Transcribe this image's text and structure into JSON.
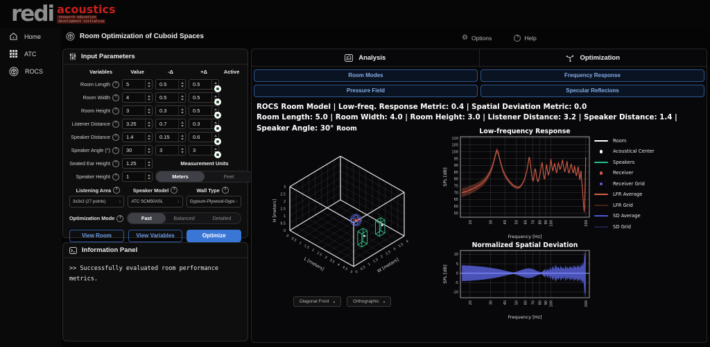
{
  "header": {
    "logo_main": "redi",
    "logo_accent": "acoustics",
    "logo_sub1": "research education",
    "logo_sub2": "development initiative"
  },
  "icons": {
    "help_q": "?",
    "options_gear": "⚙",
    "updown": "↕",
    "dropdown_up": "▴"
  },
  "sidebar": {
    "items": [
      {
        "label": "Home",
        "icon": "home-icon"
      },
      {
        "label": "ATC",
        "icon": "grid-icon"
      },
      {
        "label": "ROCS",
        "icon": "cube-icon"
      }
    ]
  },
  "topbar": {
    "title": "Room Optimization of Cuboid Spaces",
    "options_label": "Options",
    "help_label": "Help"
  },
  "input_panel": {
    "title": "Input Parameters",
    "columns": [
      "Variables",
      "Value",
      "-Δ",
      "+Δ",
      "Active"
    ],
    "rows": [
      {
        "label": "Room Length",
        "value": "5",
        "minus": "0.5",
        "plus": "0.5",
        "active": true
      },
      {
        "label": "Room Width",
        "value": "4",
        "minus": "0.5",
        "plus": "0.5",
        "active": true
      },
      {
        "label": "Room Height",
        "value": "3",
        "minus": "0.3",
        "plus": "0.5",
        "active": true
      },
      {
        "label": "Listener Distance",
        "value": "3.25",
        "minus": "0.7",
        "plus": "0.3",
        "active": true
      },
      {
        "label": "Speaker Distance",
        "value": "1.4",
        "minus": "0.15",
        "plus": "0.6",
        "active": true
      },
      {
        "label": "Speaker Angle (°)",
        "value": "30",
        "minus": "3",
        "plus": "3",
        "active": true
      }
    ],
    "extra_rows": [
      {
        "label": "Seated Ear Height",
        "value": "1.25"
      },
      {
        "label": "Speaker Height",
        "value": "1"
      }
    ],
    "measurement_units": {
      "label": "Measurement Units",
      "options": [
        "Meters",
        "Feet"
      ],
      "selected": "Meters"
    },
    "selects": [
      {
        "label": "Listening Area",
        "value": "3x3x3 (27 points)"
      },
      {
        "label": "Speaker Model",
        "value": "ATC SCM50ASL"
      },
      {
        "label": "Wall Type",
        "value": "Gypsum-Plywood-Gyps"
      }
    ],
    "optimization_mode": {
      "label": "Optimization Mode",
      "options": [
        "Fast",
        "Balanced",
        "Detailed"
      ],
      "selected": "Fast"
    },
    "buttons": [
      {
        "label": "View Room",
        "primary": false
      },
      {
        "label": "View Variables",
        "primary": false
      },
      {
        "label": "Optimize",
        "primary": true
      }
    ]
  },
  "info_panel": {
    "title": "Information Panel",
    "text": ">> Successfully evaluated room performance metrics."
  },
  "right_panel": {
    "tabs": [
      {
        "label": "Analysis"
      },
      {
        "label": "Optimization"
      }
    ],
    "action_buttons": [
      "Room Modes",
      "Frequency Response",
      "Pressure Field",
      "Specular Reflecions"
    ],
    "metrics_bold": "ROCS Room Model",
    "metrics_line1": " | Low-freq. Response Metric: 0.4 | Spatial Deviation Metric: 0.0",
    "metrics_line2": "Room Length: 5.0 | Room Width: 4.0 | Room Height: 3.0 | Listener Distance: 3.2 | Speaker Distance: 1.4 | Speaker Angle: 30°",
    "view_selects": [
      "Diagonal Front",
      "Orthographic"
    ],
    "legend": [
      {
        "label": "Room",
        "marker": "line",
        "color": "#ffffff"
      },
      {
        "label": "Acoustical Center",
        "marker": "dot",
        "color": "#ffffff"
      },
      {
        "label": "Speakers",
        "marker": "line",
        "color": "#27c28b"
      },
      {
        "label": "Receiver",
        "marker": "dot",
        "color": "#d9534f"
      },
      {
        "label": "Receiver Grid",
        "marker": "dot",
        "color": "#5a64d8"
      },
      {
        "label": "LFR Average",
        "marker": "line",
        "color": "#d95f49"
      },
      {
        "label": "LFR Grid",
        "marker": "line",
        "color": "rgba(217,95,73,0.3)"
      },
      {
        "label": "SD Average",
        "marker": "line",
        "color": "#4b57d8"
      },
      {
        "label": "SD Grid",
        "marker": "line",
        "color": "rgba(75,87,216,0.3)"
      }
    ]
  },
  "chart_data": [
    {
      "type": "line",
      "id": "lfr",
      "title": "Low-frequency Response",
      "xlabel": "Frequency [Hz]",
      "ylabel": "SPL [dB]",
      "xlim": [
        16.5,
        215
      ],
      "ylim": [
        52,
        111
      ],
      "xscale": "log",
      "xticks": [
        20,
        30,
        40,
        50,
        60,
        70,
        80,
        90,
        100,
        200
      ],
      "yticks": [
        55,
        60,
        65,
        70,
        75,
        80,
        85,
        90,
        95,
        100,
        105,
        110
      ],
      "line_color": "#d95f49",
      "band_color": "rgba(217,95,73,0.35)",
      "series_name": "LFR Average",
      "band_name": "LFR Grid",
      "avg": [
        [
          17,
          70
        ],
        [
          18,
          70.6
        ],
        [
          19,
          71.2
        ],
        [
          20,
          72
        ],
        [
          21,
          72.8
        ],
        [
          22,
          73.6
        ],
        [
          23,
          74.5
        ],
        [
          24,
          75.5
        ],
        [
          25,
          76.6
        ],
        [
          26,
          77.8
        ],
        [
          27,
          79.2
        ],
        [
          28,
          81
        ],
        [
          29,
          83
        ],
        [
          30,
          85.5
        ],
        [
          31,
          88.5
        ],
        [
          32,
          92.5
        ],
        [
          33,
          97
        ],
        [
          34,
          101
        ],
        [
          35,
          99.5
        ],
        [
          36,
          95
        ],
        [
          37,
          91
        ],
        [
          38,
          87.5
        ],
        [
          39,
          85
        ],
        [
          40,
          83
        ],
        [
          42,
          80
        ],
        [
          44,
          77.8
        ],
        [
          46,
          76
        ],
        [
          48,
          74.8
        ],
        [
          50,
          74
        ],
        [
          52,
          73.6
        ],
        [
          54,
          74.2
        ],
        [
          56,
          75.8
        ],
        [
          58,
          78.2
        ],
        [
          60,
          81.5
        ],
        [
          62,
          86
        ],
        [
          63,
          89.5
        ],
        [
          64,
          93
        ],
        [
          65,
          96
        ],
        [
          66,
          93.5
        ],
        [
          67,
          88.5
        ],
        [
          68,
          84
        ],
        [
          69,
          80.5
        ],
        [
          70,
          78.5
        ],
        [
          71,
          80
        ],
        [
          72,
          84.5
        ],
        [
          73,
          87.5
        ],
        [
          74,
          86
        ],
        [
          75,
          82
        ],
        [
          76,
          79.5
        ],
        [
          77,
          78.2
        ],
        [
          78,
          78.8
        ],
        [
          80,
          82.5
        ],
        [
          82,
          87.5
        ],
        [
          83,
          90.5
        ],
        [
          84,
          92
        ],
        [
          85,
          89
        ],
        [
          86,
          84.5
        ],
        [
          87,
          81.5
        ],
        [
          88,
          80
        ],
        [
          89,
          82
        ],
        [
          90,
          85.5
        ],
        [
          91,
          88.5
        ],
        [
          92,
          90.5
        ],
        [
          93,
          87
        ],
        [
          94,
          84.5
        ],
        [
          95,
          83
        ],
        [
          96,
          84
        ],
        [
          97,
          86
        ],
        [
          98,
          88.5
        ],
        [
          100,
          94.5
        ],
        [
          101,
          92
        ],
        [
          102,
          89.5
        ],
        [
          103,
          87
        ],
        [
          104,
          86
        ],
        [
          106,
          89
        ],
        [
          108,
          91.5
        ],
        [
          110,
          87.5
        ],
        [
          112,
          84.5
        ],
        [
          114,
          88
        ],
        [
          116,
          92
        ],
        [
          118,
          89.5
        ],
        [
          120,
          87
        ],
        [
          122,
          88.5
        ],
        [
          124,
          91
        ],
        [
          126,
          94
        ],
        [
          128,
          90.5
        ],
        [
          130,
          87
        ],
        [
          132,
          85.5
        ],
        [
          134,
          87.5
        ],
        [
          136,
          90
        ],
        [
          138,
          93
        ],
        [
          140,
          88
        ],
        [
          142,
          85
        ],
        [
          144,
          84.5
        ],
        [
          146,
          87
        ],
        [
          148,
          89.5
        ],
        [
          150,
          91
        ],
        [
          152,
          88
        ],
        [
          154,
          86
        ],
        [
          156,
          84.5
        ],
        [
          158,
          86.5
        ],
        [
          160,
          89.5
        ],
        [
          162,
          87
        ],
        [
          164,
          84
        ],
        [
          166,
          82.5
        ],
        [
          168,
          84
        ],
        [
          170,
          87
        ],
        [
          172,
          89
        ],
        [
          174,
          86
        ],
        [
          176,
          82
        ],
        [
          178,
          79.5
        ],
        [
          180,
          83
        ],
        [
          182,
          86
        ],
        [
          184,
          80
        ],
        [
          186,
          76
        ],
        [
          188,
          71
        ],
        [
          190,
          65
        ],
        [
          192,
          60
        ],
        [
          194,
          56
        ],
        [
          196,
          62
        ],
        [
          198,
          78
        ],
        [
          200,
          96
        ]
      ],
      "band_spread": [
        [
          16.5,
          3.4
        ],
        [
          22,
          2.8
        ],
        [
          28,
          2.4
        ],
        [
          34,
          2.0
        ],
        [
          40,
          1.6
        ],
        [
          48,
          1.2
        ],
        [
          56,
          1.0
        ],
        [
          64,
          1.2
        ],
        [
          70,
          0.9
        ],
        [
          120,
          0.8
        ],
        [
          215,
          0.8
        ]
      ]
    },
    {
      "type": "area",
      "id": "sd",
      "title": "Normalized Spatial Deviation",
      "xlabel": "Frequency [Hz]",
      "ylabel": "SPL [dB]",
      "xlim": [
        16.5,
        215
      ],
      "ylim": [
        -13,
        12
      ],
      "xscale": "log",
      "xticks": [
        20,
        30,
        40,
        50,
        60,
        70,
        80,
        90,
        100,
        200
      ],
      "yticks": [
        -10,
        -5,
        0,
        5,
        10
      ],
      "fill_color": "rgba(86,95,215,0.85)",
      "avg_color": "#8a93ff",
      "series_name": "SD Grid",
      "avg_name": "SD Average",
      "avg_value": 0,
      "envelope": [
        [
          17,
          4.2
        ],
        [
          20,
          4.0
        ],
        [
          23,
          3.7
        ],
        [
          26,
          3.4
        ],
        [
          29,
          3.0
        ],
        [
          32,
          2.6
        ],
        [
          35,
          2.2
        ],
        [
          38,
          1.7
        ],
        [
          41,
          1.2
        ],
        [
          44,
          0.8
        ],
        [
          47,
          0.4
        ],
        [
          50,
          0.7
        ],
        [
          53,
          1.3
        ],
        [
          56,
          1.8
        ],
        [
          60,
          2.3
        ],
        [
          64,
          2.6
        ],
        [
          68,
          2.4
        ],
        [
          72,
          1.9
        ],
        [
          76,
          1.2
        ],
        [
          80,
          0.7
        ],
        [
          83,
          0.5
        ],
        [
          86,
          1.4
        ],
        [
          89,
          2.1
        ],
        [
          91,
          1.0
        ],
        [
          94,
          2.6
        ],
        [
          96,
          1.2
        ],
        [
          99,
          3.1
        ],
        [
          101,
          1.6
        ],
        [
          104,
          3.9
        ],
        [
          107,
          2.0
        ],
        [
          110,
          4.6
        ],
        [
          113,
          2.6
        ],
        [
          116,
          3.6
        ],
        [
          119,
          2.1
        ],
        [
          122,
          4.1
        ],
        [
          125,
          2.3
        ],
        [
          128,
          3.3
        ],
        [
          131,
          1.9
        ],
        [
          134,
          4.3
        ],
        [
          137,
          2.5
        ],
        [
          140,
          3.5
        ],
        [
          143,
          2.1
        ],
        [
          146,
          4.1
        ],
        [
          149,
          2.7
        ],
        [
          152,
          3.7
        ],
        [
          155,
          2.3
        ],
        [
          158,
          4.5
        ],
        [
          161,
          2.9
        ],
        [
          164,
          3.9
        ],
        [
          167,
          2.5
        ],
        [
          170,
          4.7
        ],
        [
          173,
          3.1
        ],
        [
          176,
          4.1
        ],
        [
          179,
          2.7
        ],
        [
          182,
          4.9
        ],
        [
          185,
          3.3
        ],
        [
          188,
          5.6
        ],
        [
          191,
          4.1
        ],
        [
          193,
          6.5
        ],
        [
          195,
          13
        ],
        [
          197,
          9
        ],
        [
          199,
          12
        ],
        [
          200,
          11
        ]
      ]
    },
    {
      "type": "scene3d",
      "id": "room",
      "title": "Room",
      "room_dims": {
        "L": 5,
        "W": 4,
        "H": 3
      },
      "axis_labels": {
        "L": "L [meters]",
        "W": "W [meters]",
        "H": "H [meters]"
      },
      "tick_step": 0.5,
      "listener": {
        "L": 3.2,
        "W": 2.0,
        "H": 1.25
      },
      "speakers": [
        {
          "L": 4.4,
          "W": 1.3
        },
        {
          "L": 4.4,
          "W": 2.7
        }
      ],
      "colors": {
        "room": "#e8e8e8",
        "speakers": "#35c98e",
        "receiver_grid": "#5f6ad9",
        "receiver": "#e0524a",
        "acoustical_center": "#ffffff"
      }
    }
  ]
}
